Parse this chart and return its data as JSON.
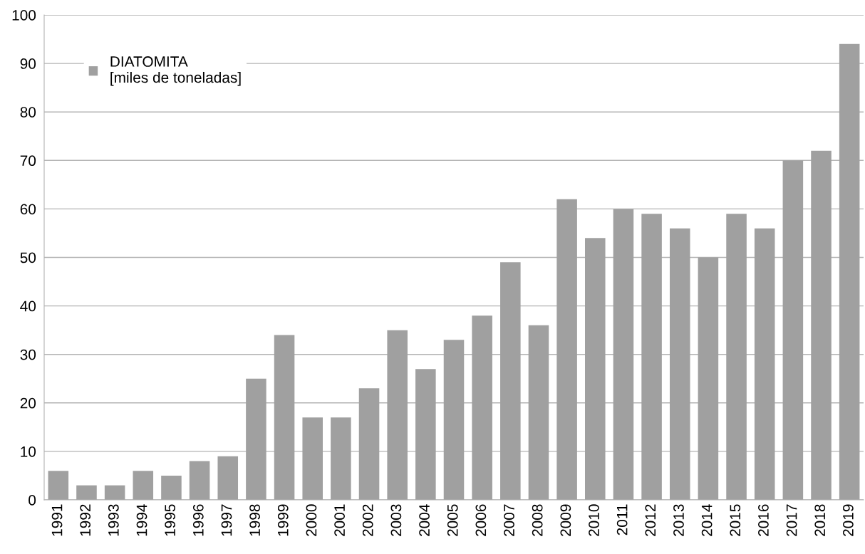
{
  "chart_data": {
    "type": "bar",
    "categories": [
      "1991",
      "1992",
      "1993",
      "1994",
      "1995",
      "1996",
      "1997",
      "1998",
      "1999",
      "2000",
      "2001",
      "2002",
      "2003",
      "2004",
      "2005",
      "2006",
      "2007",
      "2008",
      "2009",
      "2010",
      "2011",
      "2012",
      "2013",
      "2014",
      "2015",
      "2016",
      "2017",
      "2018",
      "2019"
    ],
    "series": [
      {
        "name": "DIATOMITA\n[miles de toneladas]",
        "color": "#a0a0a0",
        "values": [
          6,
          3,
          3,
          6,
          5,
          8,
          9,
          25,
          34,
          17,
          17,
          23,
          35,
          27,
          33,
          38,
          49,
          36,
          62,
          54,
          60,
          59,
          56,
          50,
          59,
          56,
          70,
          72,
          94
        ]
      }
    ],
    "ylim": [
      0,
      100
    ],
    "yticks": [
      0,
      10,
      20,
      30,
      40,
      50,
      60,
      70,
      80,
      90,
      100
    ],
    "grid": "y",
    "legend": "top left"
  }
}
